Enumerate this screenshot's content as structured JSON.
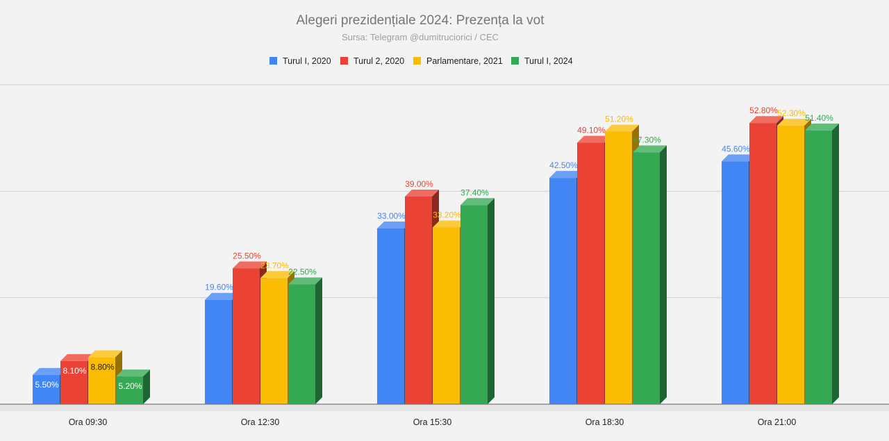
{
  "chart_data": {
    "type": "bar",
    "title": "Alegeri prezidențiale 2024: Prezența la vot",
    "subtitle": "Sursa: Telegram @dumitruciorici / CEC",
    "categories": [
      "Ora 09:30",
      "Ora 12:30",
      "Ora 15:30",
      "Ora 18:30",
      "Ora 21:00"
    ],
    "series": [
      {
        "name": "Turul I, 2020",
        "color": "#4285f4",
        "values": [
          5.5,
          19.6,
          33.0,
          42.5,
          45.6
        ],
        "labels": [
          "5.50%",
          "19.60%",
          "33.00%",
          "42.50%",
          "45.60%"
        ]
      },
      {
        "name": "Turul 2, 2020",
        "color": "#ea4335",
        "values": [
          8.1,
          25.5,
          39.0,
          49.1,
          52.8
        ],
        "labels": [
          "8.10%",
          "25.50%",
          "39.00%",
          "49.10%",
          "52.80%"
        ]
      },
      {
        "name": "Parlamentare, 2021",
        "color": "#fbbc04",
        "values": [
          8.8,
          23.7,
          33.2,
          51.2,
          52.3
        ],
        "labels": [
          "8.80%",
          "23.70%",
          "33.20%",
          "51.20%",
          "52.30%"
        ]
      },
      {
        "name": "Turul I, 2024",
        "color": "#34a853",
        "values": [
          5.2,
          22.5,
          37.4,
          47.3,
          51.4
        ],
        "labels": [
          "5.20%",
          "22.50%",
          "37.40%",
          "47.30%",
          "51.40%"
        ]
      }
    ],
    "ylim": [
      0,
      60
    ],
    "grid": true,
    "legend": "top",
    "style": "3d-bars"
  }
}
